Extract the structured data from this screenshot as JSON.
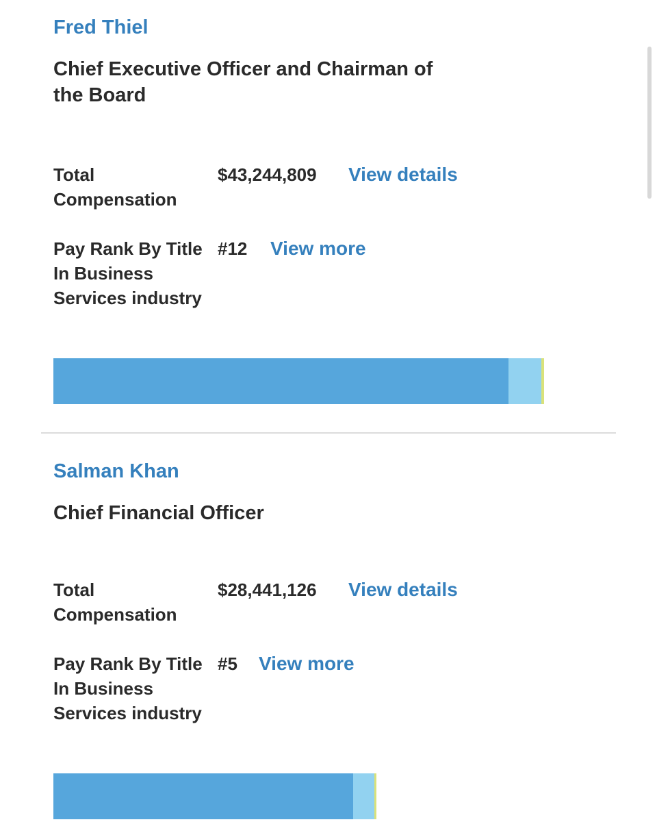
{
  "executives": [
    {
      "name": "Fred Thiel",
      "title": "Chief Executive Officer and Chairman of the Board",
      "total_compensation_label": "Total Compensation",
      "total_compensation_value": "$43,244,809",
      "view_details_label": "View details",
      "pay_rank_label": "Pay Rank By Title In Business Services industry",
      "pay_rank_value": "#12",
      "view_more_label": "View more",
      "compensation_bar": {
        "share_of_max": 1.0,
        "segments": [
          {
            "fraction": 0.928,
            "color": "#56a6dc"
          },
          {
            "fraction": 0.066,
            "color": "#92d2f0"
          },
          {
            "fraction": 0.006,
            "color": "#d9e27a"
          }
        ]
      }
    },
    {
      "name": "Salman Khan",
      "title": "Chief Financial Officer",
      "total_compensation_label": "Total Compensation",
      "total_compensation_value": "$28,441,126",
      "view_details_label": "View details",
      "pay_rank_label": "Pay Rank By Title In Business Services industry",
      "pay_rank_value": "#5",
      "view_more_label": "View more",
      "compensation_bar": {
        "share_of_max": 0.658,
        "segments": [
          {
            "fraction": 0.928,
            "color": "#56a6dc"
          },
          {
            "fraction": 0.066,
            "color": "#92d2f0"
          },
          {
            "fraction": 0.006,
            "color": "#d9e27a"
          }
        ]
      }
    }
  ]
}
